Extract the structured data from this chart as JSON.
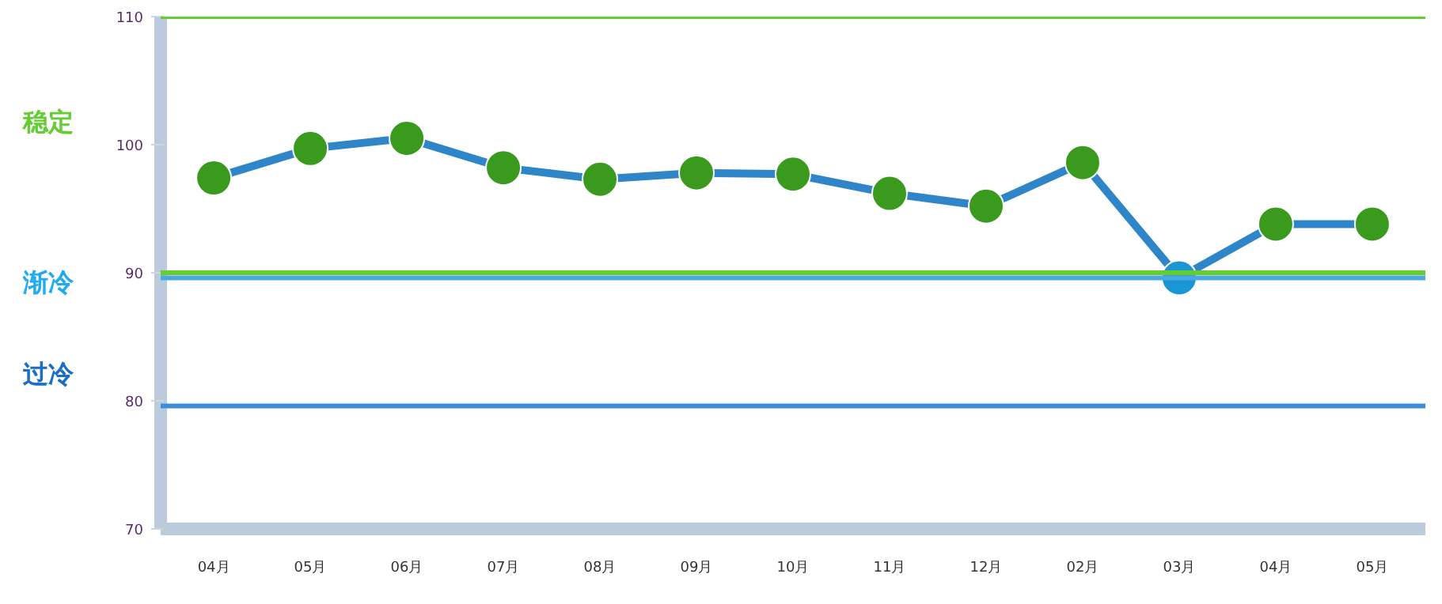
{
  "chart_data": {
    "type": "line",
    "categories": [
      "04月",
      "05月",
      "06月",
      "07月",
      "08月",
      "09月",
      "10月",
      "11月",
      "12月",
      "02月",
      "03月",
      "04月",
      "05月"
    ],
    "series": [
      {
        "color": "#2e86c8",
        "colors": [
          "#3a9a1e",
          "#3a9a1e",
          "#3a9a1e",
          "#3a9a1e",
          "#3a9a1e",
          "#3a9a1e",
          "#3a9a1e",
          "#3a9a1e",
          "#3a9a1e",
          "#3a9a1e",
          "#1a96d4",
          "#3a9a1e",
          "#3a9a1e"
        ],
        "values": [
          97.4,
          99.7,
          100.5,
          98.2,
          97.3,
          97.8,
          97.7,
          96.2,
          95.2,
          98.6,
          89.6,
          93.8,
          93.8
        ]
      }
    ],
    "ylim": [
      70,
      110
    ],
    "yticks": [
      70,
      80,
      90,
      100,
      110
    ],
    "grid": false,
    "marker": "circle",
    "line_style": "solid",
    "ref_lines": [
      {
        "axis": "y",
        "value": 110,
        "color": "#66cc33"
      },
      {
        "axis": "y",
        "value": 90,
        "color": "#66cc33"
      },
      {
        "axis": "y",
        "value": 89.6,
        "color": "#4aa8e0"
      },
      {
        "axis": "y",
        "value": 79.6,
        "color": "#3b8fd8"
      }
    ],
    "annotations": [
      "稳定",
      "渐冷",
      "过冷"
    ]
  }
}
